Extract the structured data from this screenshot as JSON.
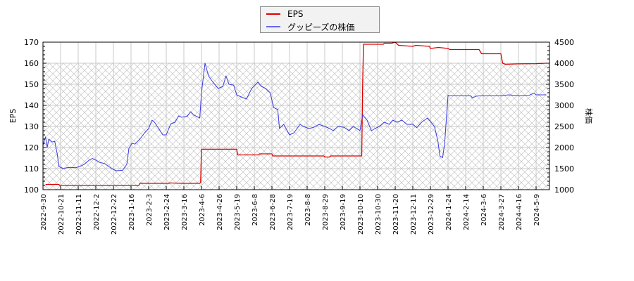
{
  "chart_data": {
    "type": "line",
    "title": "",
    "legend": {
      "position": "top-center",
      "entries": [
        {
          "label": "EPS",
          "color": "#dd0000"
        },
        {
          "label": "グッピーズの株価",
          "color": "#4444dd"
        }
      ]
    },
    "x_tick_labels": [
      "2022-9-30",
      "2022-10-21",
      "2022-11-11",
      "2022-12-2",
      "2022-12-22",
      "2023-1-16",
      "2023-2-3",
      "2023-2-24",
      "2023-3-16",
      "2023-4-6",
      "2023-4-26",
      "2023-5-19",
      "2023-6-8",
      "2023-6-28",
      "2023-7-19",
      "2023-8-8",
      "2023-8-29",
      "2023-9-19",
      "2023-10-10",
      "2023-10-30",
      "2023-11-20",
      "2023-12-11",
      "2023-12-29",
      "2024-1-24",
      "2024-2-14",
      "2024-3-6",
      "2024-3-27",
      "2024-4-16",
      "2024-5-9"
    ],
    "left_axis": {
      "label": "EPS",
      "ylim": [
        100,
        170
      ],
      "ticks": [
        100,
        110,
        120,
        130,
        140,
        150,
        160,
        170
      ]
    },
    "right_axis": {
      "label": "株価",
      "ylim": [
        1000,
        4500
      ],
      "ticks": [
        1000,
        1500,
        2000,
        2500,
        3000,
        3500,
        4000,
        4500
      ]
    },
    "grid": true,
    "hatched_region": {
      "axis": "right",
      "from": 1000,
      "to": 4000
    },
    "series": [
      {
        "name": "EPS",
        "axis": "left",
        "color": "#dd0000",
        "points": [
          [
            "2022-10-3",
            102.5
          ],
          [
            "2022-10-19",
            102.5
          ],
          [
            "2022-10-20",
            102
          ],
          [
            "2023-1-24",
            102
          ],
          [
            "2023-1-25",
            103
          ],
          [
            "2023-2-27",
            103
          ],
          [
            "2023-2-28",
            103.2
          ],
          [
            "2023-3-15",
            103
          ],
          [
            "2023-4-4",
            103
          ],
          [
            "2023-4-5",
            103.5
          ],
          [
            "2023-4-6",
            119.2
          ],
          [
            "2023-5-19",
            119.2
          ],
          [
            "2023-5-20",
            116.5
          ],
          [
            "2023-6-13",
            116.5
          ],
          [
            "2023-6-14",
            117
          ],
          [
            "2023-6-28",
            117
          ],
          [
            "2023-6-29",
            116
          ],
          [
            "2023-8-28",
            116
          ],
          [
            "2023-8-29",
            115.5
          ],
          [
            "2023-9-4",
            115.5
          ],
          [
            "2023-9-5",
            116
          ],
          [
            "2023-10-12",
            116
          ],
          [
            "2023-10-13",
            150
          ],
          [
            "2023-10-14",
            169
          ],
          [
            "2023-11-6",
            169
          ],
          [
            "2023-11-7",
            169.5
          ],
          [
            "2023-11-16",
            169.5
          ],
          [
            "2023-11-20",
            170
          ],
          [
            "2023-11-24",
            168.5
          ],
          [
            "2023-12-11",
            168
          ],
          [
            "2023-12-14",
            168.5
          ],
          [
            "2023-12-28",
            168
          ],
          [
            "2023-12-29",
            167
          ],
          [
            "2024-1-10",
            167.5
          ],
          [
            "2024-1-24",
            167
          ],
          [
            "2024-1-26",
            166.5
          ],
          [
            "2024-3-1",
            166.5
          ],
          [
            "2024-3-4",
            164.5
          ],
          [
            "2024-3-27",
            164.5
          ],
          [
            "2024-3-29",
            160
          ],
          [
            "2024-4-1",
            159.5
          ],
          [
            "2024-4-16",
            159.7
          ],
          [
            "2024-5-9",
            159.8
          ],
          [
            "2024-5-22",
            160
          ]
        ]
      },
      {
        "name": "グッピーズの株価",
        "axis": "right",
        "color": "#4444dd",
        "points": [
          [
            "2022-9-30",
            2050
          ],
          [
            "2022-10-3",
            2250
          ],
          [
            "2022-10-5",
            2000
          ],
          [
            "2022-10-7",
            2200
          ],
          [
            "2022-10-11",
            2130
          ],
          [
            "2022-10-14",
            2150
          ],
          [
            "2022-10-17",
            1850
          ],
          [
            "2022-10-19",
            1550
          ],
          [
            "2022-10-24",
            1500
          ],
          [
            "2022-10-28",
            1520
          ],
          [
            "2022-11-2",
            1530
          ],
          [
            "2022-11-8",
            1520
          ],
          [
            "2022-11-14",
            1560
          ],
          [
            "2022-11-18",
            1600
          ],
          [
            "2022-11-24",
            1700
          ],
          [
            "2022-11-28",
            1740
          ],
          [
            "2022-12-2",
            1700
          ],
          [
            "2022-12-6",
            1650
          ],
          [
            "2022-12-12",
            1620
          ],
          [
            "2022-12-16",
            1560
          ],
          [
            "2022-12-20",
            1500
          ],
          [
            "2022-12-26",
            1450
          ],
          [
            "2023-1-4",
            1460
          ],
          [
            "2023-1-10",
            1600
          ],
          [
            "2023-1-13",
            1980
          ],
          [
            "2023-1-17",
            2100
          ],
          [
            "2023-1-20",
            2080
          ],
          [
            "2023-1-25",
            2200
          ],
          [
            "2023-1-30",
            2350
          ],
          [
            "2023-2-3",
            2450
          ],
          [
            "2023-2-7",
            2650
          ],
          [
            "2023-2-10",
            2600
          ],
          [
            "2023-2-15",
            2450
          ],
          [
            "2023-2-20",
            2300
          ],
          [
            "2023-2-24",
            2300
          ],
          [
            "2023-3-1",
            2560
          ],
          [
            "2023-3-6",
            2600
          ],
          [
            "2023-3-10",
            2750
          ],
          [
            "2023-3-14",
            2720
          ],
          [
            "2023-3-20",
            2740
          ],
          [
            "2023-3-24",
            2850
          ],
          [
            "2023-3-28",
            2770
          ],
          [
            "2023-4-4",
            2700
          ],
          [
            "2023-4-6",
            3300
          ],
          [
            "2023-4-10",
            4000
          ],
          [
            "2023-4-14",
            3700
          ],
          [
            "2023-4-19",
            3550
          ],
          [
            "2023-4-25",
            3400
          ],
          [
            "2023-5-1",
            3450
          ],
          [
            "2023-5-5",
            3700
          ],
          [
            "2023-5-9",
            3500
          ],
          [
            "2023-5-15",
            3480
          ],
          [
            "2023-5-19",
            3250
          ],
          [
            "2023-5-24",
            3200
          ],
          [
            "2023-5-30",
            3150
          ],
          [
            "2023-6-5",
            3400
          ],
          [
            "2023-6-12",
            3550
          ],
          [
            "2023-6-16",
            3450
          ],
          [
            "2023-6-21",
            3400
          ],
          [
            "2023-6-26",
            3300
          ],
          [
            "2023-6-30",
            2950
          ],
          [
            "2023-7-5",
            2900
          ],
          [
            "2023-7-7",
            2450
          ],
          [
            "2023-7-12",
            2550
          ],
          [
            "2023-7-19",
            2300
          ],
          [
            "2023-7-24",
            2350
          ],
          [
            "2023-7-31",
            2550
          ],
          [
            "2023-8-4",
            2500
          ],
          [
            "2023-8-10",
            2450
          ],
          [
            "2023-8-16",
            2480
          ],
          [
            "2023-8-22",
            2550
          ],
          [
            "2023-8-29",
            2500
          ],
          [
            "2023-9-4",
            2450
          ],
          [
            "2023-9-8",
            2400
          ],
          [
            "2023-9-14",
            2500
          ],
          [
            "2023-9-21",
            2480
          ],
          [
            "2023-9-27",
            2400
          ],
          [
            "2023-10-2",
            2500
          ],
          [
            "2023-10-10",
            2400
          ],
          [
            "2023-10-13",
            2780
          ],
          [
            "2023-10-18",
            2650
          ],
          [
            "2023-10-23",
            2400
          ],
          [
            "2023-10-27",
            2450
          ],
          [
            "2023-11-1",
            2500
          ],
          [
            "2023-11-7",
            2600
          ],
          [
            "2023-11-13",
            2550
          ],
          [
            "2023-11-17",
            2650
          ],
          [
            "2023-11-22",
            2600
          ],
          [
            "2023-11-28",
            2650
          ],
          [
            "2023-12-4",
            2550
          ],
          [
            "2023-12-11",
            2550
          ],
          [
            "2023-12-15",
            2470
          ],
          [
            "2023-12-20",
            2600
          ],
          [
            "2023-12-26",
            2700
          ],
          [
            "2024-1-4",
            2500
          ],
          [
            "2024-1-9",
            2150
          ],
          [
            "2024-1-12",
            1800
          ],
          [
            "2024-1-16",
            1760
          ],
          [
            "2024-1-19",
            2100
          ],
          [
            "2024-1-24",
            3240
          ],
          [
            "2024-1-26",
            3230
          ],
          [
            "2024-2-14",
            3230
          ],
          [
            "2024-2-20",
            3230
          ],
          [
            "2024-2-22",
            3180
          ],
          [
            "2024-2-27",
            3220
          ],
          [
            "2024-3-6",
            3230
          ],
          [
            "2024-3-27",
            3230
          ],
          [
            "2024-4-5",
            3250
          ],
          [
            "2024-4-16",
            3230
          ],
          [
            "2024-4-30",
            3240
          ],
          [
            "2024-5-6",
            3290
          ],
          [
            "2024-5-9",
            3250
          ],
          [
            "2024-5-22",
            3250
          ]
        ]
      }
    ]
  }
}
